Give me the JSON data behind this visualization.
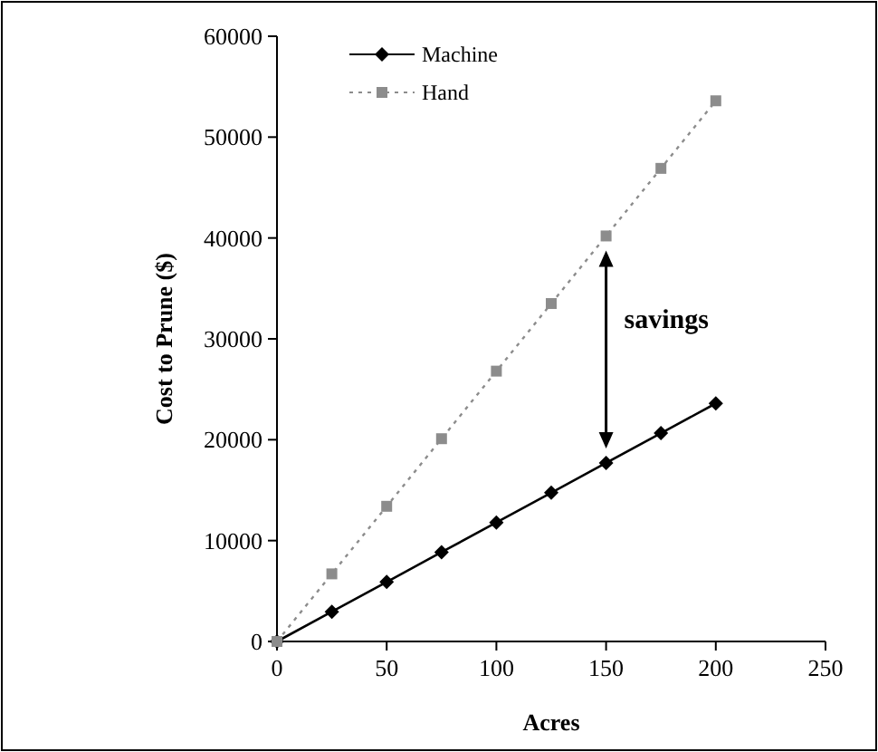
{
  "chart_data": {
    "type": "line",
    "xlabel": "Acres",
    "ylabel": "Cost to Prune ($)",
    "x": [
      0,
      25,
      50,
      75,
      100,
      125,
      150,
      175,
      200
    ],
    "series": [
      {
        "name": "Machine",
        "color": "#000000",
        "marker": "diamond",
        "line_style": "solid",
        "values": [
          0,
          2950,
          5900,
          8850,
          11800,
          14750,
          17700,
          20650,
          23600
        ]
      },
      {
        "name": "Hand",
        "color": "#8c8c8c",
        "marker": "square",
        "line_style": "dotted",
        "values": [
          0,
          6700,
          13400,
          20100,
          26800,
          33500,
          40200,
          46900,
          53600
        ]
      }
    ],
    "xlim": [
      0,
      250
    ],
    "xticks": [
      0,
      50,
      100,
      150,
      200,
      250
    ],
    "ylim": [
      0,
      60000
    ],
    "yticks": [
      0,
      10000,
      20000,
      30000,
      40000,
      50000,
      60000
    ],
    "grid": false,
    "legend": "top left",
    "annotations": [
      "savings"
    ]
  }
}
